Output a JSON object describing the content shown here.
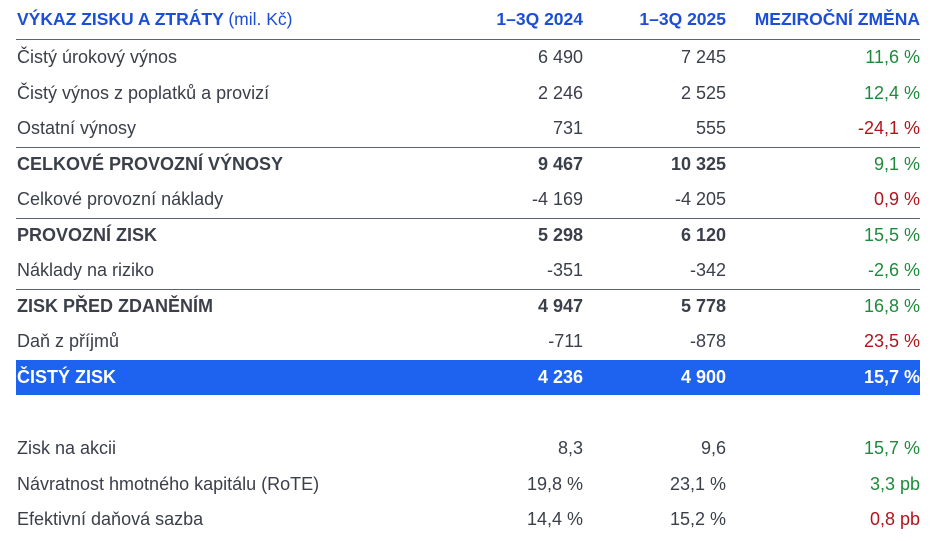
{
  "header": {
    "title": "VÝKAZ ZISKU A ZTRÁTY",
    "unit": "(mil. Kč)",
    "col1": "1–3Q 2024",
    "col2": "1–3Q 2025",
    "col3": "MEZIROČNÍ ZMĚNA"
  },
  "rows": [
    {
      "label": "Čistý úrokový výnos",
      "v2024": "6 490",
      "v2025": "7 245",
      "change": "11,6 %"
    },
    {
      "label": "Čistý výnos z poplatků a provizí",
      "v2024": "2 246",
      "v2025": "2 525",
      "change": "12,4 %"
    },
    {
      "label": "Ostatní výnosy",
      "v2024": "731",
      "v2025": "555",
      "change": "-24,1 %"
    },
    {
      "label": "CELKOVÉ PROVOZNÍ VÝNOSY",
      "v2024": "9 467",
      "v2025": "10 325",
      "change": "9,1 %"
    },
    {
      "label": "Celkové provozní náklady",
      "v2024": "-4 169",
      "v2025": "-4 205",
      "change": "0,9 %"
    },
    {
      "label": "PROVOZNÍ ZISK",
      "v2024": "5 298",
      "v2025": "6 120",
      "change": "15,5 %"
    },
    {
      "label": "Náklady na riziko",
      "v2024": "-351",
      "v2025": "-342",
      "change": "-2,6 %"
    },
    {
      "label": "ZISK PŘED ZDANĚNÍM",
      "v2024": "4 947",
      "v2025": "5 778",
      "change": "16,8 %"
    },
    {
      "label": "Daň z příjmů",
      "v2024": "-711",
      "v2025": "-878",
      "change": "23,5 %"
    },
    {
      "label": "ČISTÝ ZISK",
      "v2024": "4 236",
      "v2025": "4 900",
      "change": "15,7 %"
    }
  ],
  "ratios": [
    {
      "label": "Zisk na akcii",
      "v2024": "8,3",
      "v2025": "9,6",
      "change": "15,7 %"
    },
    {
      "label": "Návratnost hmotného kapitálu (RoTE)",
      "v2024": "19,8 %",
      "v2025": "23,1 %",
      "change": "3,3 pb"
    },
    {
      "label": "Efektivní daňová sazba",
      "v2024": "14,4 %",
      "v2025": "15,2 %",
      "change": "0,8 pb"
    }
  ],
  "colors": {
    "header_blue": "#1c4fd6",
    "highlight_bg": "#1e62f0",
    "positive": "#1f8a3b",
    "negative": "#b0151c"
  }
}
